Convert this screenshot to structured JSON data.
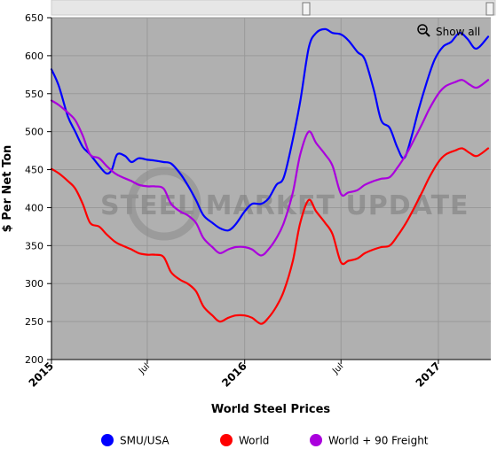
{
  "chart_data": {
    "type": "line",
    "title": "",
    "xlabel": "World Steel Prices",
    "ylabel": "$ Per Net Ton",
    "ylim": [
      200,
      650
    ],
    "yticks": [
      200,
      250,
      300,
      350,
      400,
      450,
      500,
      550,
      600,
      650
    ],
    "xlim": [
      "2015-01-01",
      "2017-04-10"
    ],
    "xticks": [
      {
        "date": "2015-01-01",
        "label": "2015",
        "major": true
      },
      {
        "date": "2015-07-01",
        "label": "Jul",
        "major": false
      },
      {
        "date": "2016-01-01",
        "label": "2016",
        "major": true
      },
      {
        "date": "2016-07-01",
        "label": "Jul",
        "major": false
      },
      {
        "date": "2017-01-01",
        "label": "2017",
        "major": true
      }
    ],
    "grid": true,
    "legend": "bottom",
    "background": "#b0b0b0",
    "watermark": "STEEL MARKET UPDATE",
    "show_all_label": "Show all",
    "series": [
      {
        "name": "SMU/USA",
        "color": "#0000ff",
        "points": [
          [
            "2015-01-01",
            582
          ],
          [
            "2015-01-15",
            560
          ],
          [
            "2015-02-01",
            520
          ],
          [
            "2015-02-15",
            500
          ],
          [
            "2015-03-01",
            480
          ],
          [
            "2015-03-15",
            470
          ],
          [
            "2015-04-01",
            455
          ],
          [
            "2015-04-15",
            445
          ],
          [
            "2015-04-25",
            450
          ],
          [
            "2015-05-05",
            470
          ],
          [
            "2015-05-20",
            468
          ],
          [
            "2015-06-01",
            460
          ],
          [
            "2015-06-15",
            465
          ],
          [
            "2015-07-01",
            463
          ],
          [
            "2015-07-15",
            462
          ],
          [
            "2015-08-01",
            460
          ],
          [
            "2015-08-15",
            458
          ],
          [
            "2015-09-01",
            445
          ],
          [
            "2015-09-15",
            430
          ],
          [
            "2015-10-01",
            410
          ],
          [
            "2015-10-15",
            390
          ],
          [
            "2015-11-01",
            380
          ],
          [
            "2015-11-15",
            373
          ],
          [
            "2015-12-01",
            370
          ],
          [
            "2015-12-15",
            378
          ],
          [
            "2016-01-01",
            395
          ],
          [
            "2016-01-15",
            405
          ],
          [
            "2016-02-01",
            405
          ],
          [
            "2016-02-15",
            412
          ],
          [
            "2016-03-01",
            430
          ],
          [
            "2016-03-15",
            440
          ],
          [
            "2016-04-01",
            490
          ],
          [
            "2016-04-15",
            540
          ],
          [
            "2016-05-01",
            610
          ],
          [
            "2016-05-15",
            630
          ],
          [
            "2016-06-01",
            635
          ],
          [
            "2016-06-15",
            630
          ],
          [
            "2016-07-01",
            628
          ],
          [
            "2016-07-15",
            620
          ],
          [
            "2016-08-01",
            605
          ],
          [
            "2016-08-15",
            595
          ],
          [
            "2016-09-01",
            555
          ],
          [
            "2016-09-15",
            515
          ],
          [
            "2016-10-01",
            505
          ],
          [
            "2016-10-15",
            480
          ],
          [
            "2016-10-28",
            465
          ],
          [
            "2016-11-10",
            490
          ],
          [
            "2016-11-25",
            530
          ],
          [
            "2016-12-10",
            565
          ],
          [
            "2016-12-25",
            595
          ],
          [
            "2017-01-10",
            612
          ],
          [
            "2017-01-25",
            618
          ],
          [
            "2017-02-10",
            630
          ],
          [
            "2017-02-25",
            622
          ],
          [
            "2017-03-10",
            610
          ],
          [
            "2017-03-20",
            612
          ],
          [
            "2017-04-05",
            625
          ]
        ]
      },
      {
        "name": "World",
        "color": "#ff0000",
        "points": [
          [
            "2015-01-01",
            451
          ],
          [
            "2015-01-15",
            445
          ],
          [
            "2015-02-01",
            435
          ],
          [
            "2015-02-15",
            425
          ],
          [
            "2015-03-01",
            405
          ],
          [
            "2015-03-15",
            380
          ],
          [
            "2015-04-01",
            375
          ],
          [
            "2015-04-15",
            365
          ],
          [
            "2015-05-01",
            355
          ],
          [
            "2015-05-15",
            350
          ],
          [
            "2015-06-01",
            345
          ],
          [
            "2015-06-15",
            340
          ],
          [
            "2015-07-01",
            338
          ],
          [
            "2015-07-15",
            338
          ],
          [
            "2015-08-01",
            335
          ],
          [
            "2015-08-15",
            315
          ],
          [
            "2015-09-01",
            305
          ],
          [
            "2015-09-15",
            300
          ],
          [
            "2015-10-01",
            290
          ],
          [
            "2015-10-15",
            270
          ],
          [
            "2015-11-01",
            258
          ],
          [
            "2015-11-15",
            250
          ],
          [
            "2015-12-01",
            255
          ],
          [
            "2015-12-15",
            258
          ],
          [
            "2016-01-01",
            258
          ],
          [
            "2016-01-15",
            255
          ],
          [
            "2016-02-01",
            247
          ],
          [
            "2016-02-15",
            255
          ],
          [
            "2016-03-01",
            270
          ],
          [
            "2016-03-15",
            290
          ],
          [
            "2016-04-01",
            330
          ],
          [
            "2016-04-15",
            380
          ],
          [
            "2016-05-01",
            410
          ],
          [
            "2016-05-15",
            395
          ],
          [
            "2016-06-01",
            380
          ],
          [
            "2016-06-15",
            365
          ],
          [
            "2016-07-01",
            328
          ],
          [
            "2016-07-15",
            330
          ],
          [
            "2016-08-01",
            333
          ],
          [
            "2016-08-15",
            340
          ],
          [
            "2016-09-01",
            345
          ],
          [
            "2016-09-15",
            348
          ],
          [
            "2016-10-01",
            350
          ],
          [
            "2016-10-15",
            362
          ],
          [
            "2016-11-01",
            380
          ],
          [
            "2016-11-15",
            398
          ],
          [
            "2016-12-01",
            420
          ],
          [
            "2016-12-15",
            440
          ],
          [
            "2017-01-01",
            460
          ],
          [
            "2017-01-15",
            470
          ],
          [
            "2017-02-01",
            475
          ],
          [
            "2017-02-15",
            478
          ],
          [
            "2017-03-01",
            472
          ],
          [
            "2017-03-15",
            468
          ],
          [
            "2017-04-05",
            478
          ]
        ]
      },
      {
        "name": "World + 90 Freight",
        "color": "#aa00dd",
        "points": [
          [
            "2015-01-01",
            541
          ],
          [
            "2015-01-15",
            535
          ],
          [
            "2015-02-01",
            525
          ],
          [
            "2015-02-15",
            515
          ],
          [
            "2015-03-01",
            495
          ],
          [
            "2015-03-15",
            470
          ],
          [
            "2015-04-01",
            465
          ],
          [
            "2015-04-15",
            455
          ],
          [
            "2015-05-01",
            445
          ],
          [
            "2015-05-15",
            440
          ],
          [
            "2015-06-01",
            435
          ],
          [
            "2015-06-15",
            430
          ],
          [
            "2015-07-01",
            428
          ],
          [
            "2015-07-15",
            428
          ],
          [
            "2015-08-01",
            425
          ],
          [
            "2015-08-15",
            405
          ],
          [
            "2015-09-01",
            395
          ],
          [
            "2015-09-15",
            390
          ],
          [
            "2015-10-01",
            380
          ],
          [
            "2015-10-15",
            360
          ],
          [
            "2015-11-01",
            348
          ],
          [
            "2015-11-15",
            340
          ],
          [
            "2015-12-01",
            345
          ],
          [
            "2015-12-15",
            348
          ],
          [
            "2016-01-01",
            348
          ],
          [
            "2016-01-15",
            345
          ],
          [
            "2016-02-01",
            337
          ],
          [
            "2016-02-15",
            345
          ],
          [
            "2016-03-01",
            360
          ],
          [
            "2016-03-15",
            380
          ],
          [
            "2016-04-01",
            420
          ],
          [
            "2016-04-15",
            470
          ],
          [
            "2016-05-01",
            500
          ],
          [
            "2016-05-15",
            485
          ],
          [
            "2016-06-01",
            470
          ],
          [
            "2016-06-15",
            455
          ],
          [
            "2016-07-01",
            418
          ],
          [
            "2016-07-15",
            420
          ],
          [
            "2016-08-01",
            423
          ],
          [
            "2016-08-15",
            430
          ],
          [
            "2016-09-01",
            435
          ],
          [
            "2016-09-15",
            438
          ],
          [
            "2016-10-01",
            440
          ],
          [
            "2016-10-15",
            452
          ],
          [
            "2016-11-01",
            470
          ],
          [
            "2016-11-15",
            488
          ],
          [
            "2016-12-01",
            510
          ],
          [
            "2016-12-15",
            530
          ],
          [
            "2017-01-01",
            550
          ],
          [
            "2017-01-15",
            560
          ],
          [
            "2017-02-01",
            565
          ],
          [
            "2017-02-15",
            568
          ],
          [
            "2017-03-01",
            562
          ],
          [
            "2017-03-15",
            558
          ],
          [
            "2017-04-05",
            568
          ]
        ]
      }
    ]
  }
}
